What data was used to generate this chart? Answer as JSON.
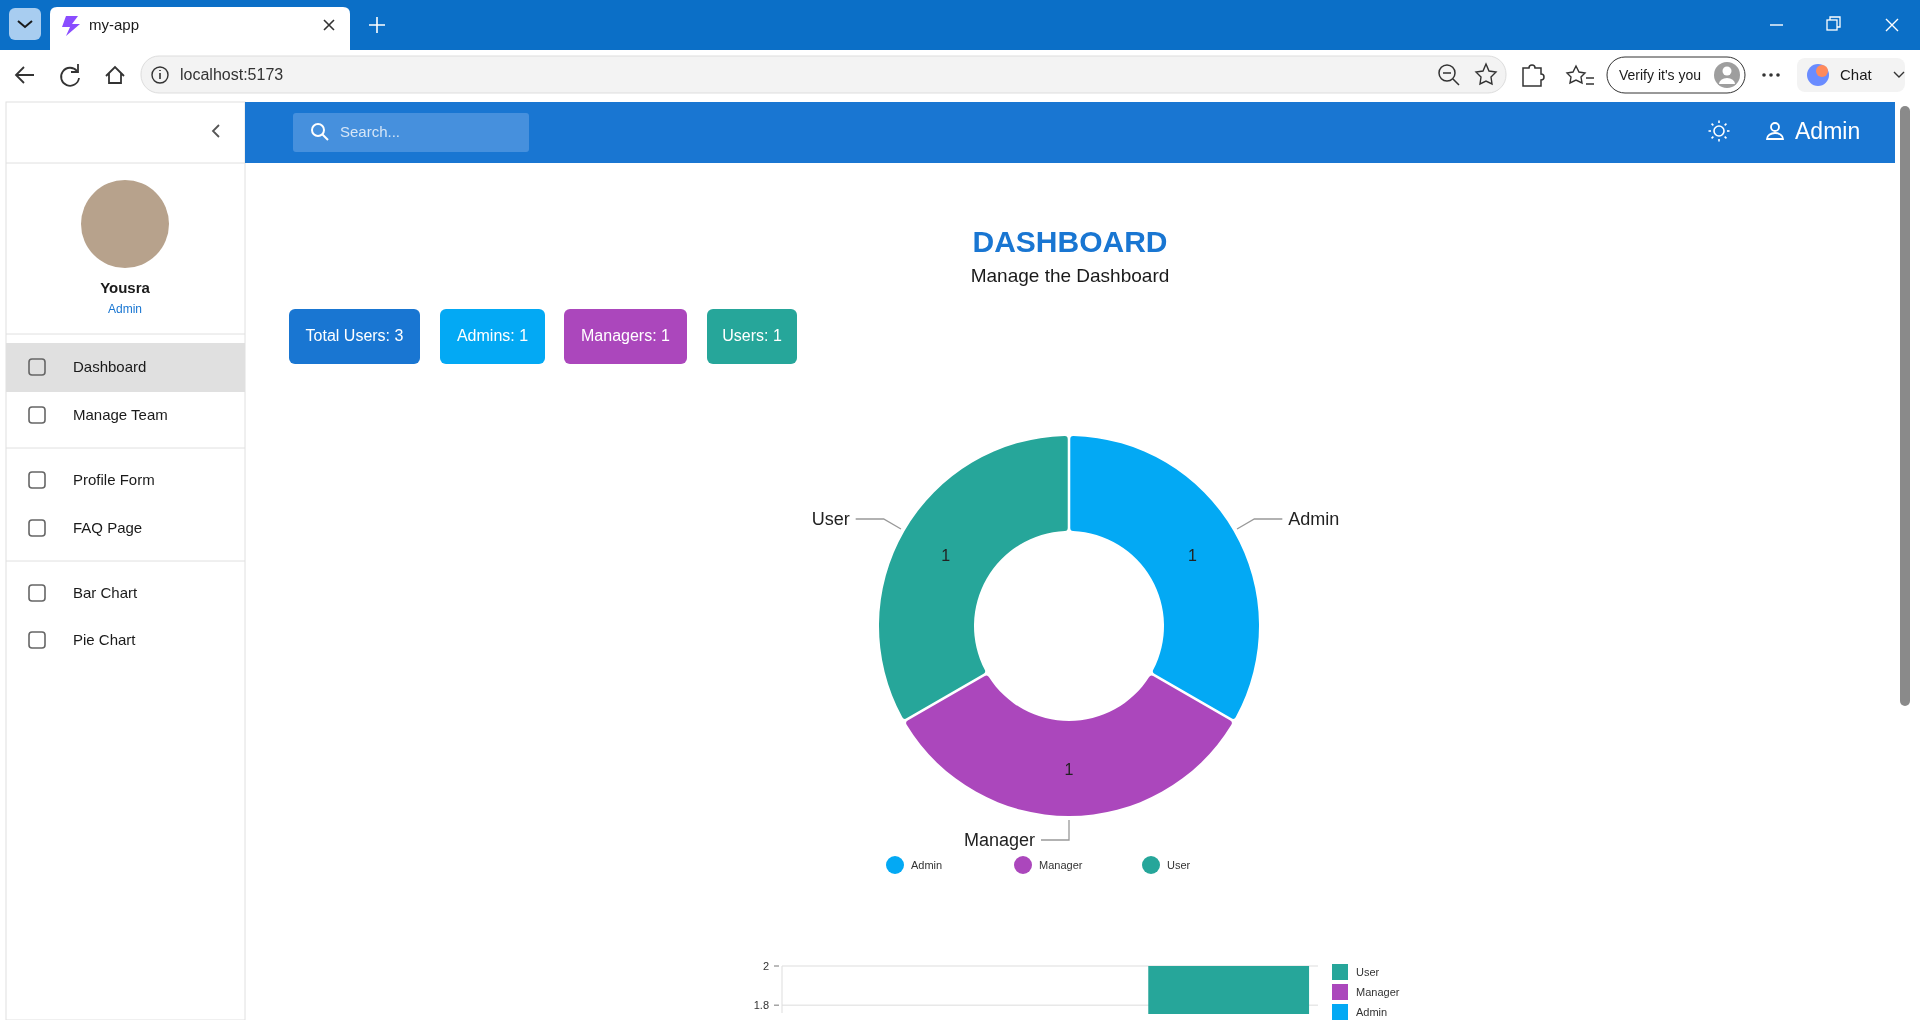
{
  "chart_data": [
    {
      "type": "other",
      "annotations": [
        "my-app",
        "localhost:5173",
        "Verify it's you",
        "Chat",
        "Search...",
        "Admin",
        "Yousra",
        "Admin",
        "Dashboard",
        "Manage Team",
        "Profile Form",
        "FAQ Page",
        "Bar Chart",
        "Pie Chart"
      ]
    },
    {
      "type": "donut",
      "title": "DASHBOARD",
      "subtitle": "Manage the Dashboard",
      "annotations": [
        "Total Users: 3",
        "Admins: 1",
        "Managers: 1",
        "Users: 1"
      ],
      "categories": [
        "Admin",
        "Manager",
        "User"
      ],
      "values": [
        1,
        1,
        1
      ],
      "colors": [
        "#03a9f4",
        "#ab47bc",
        "#26a69a"
      ],
      "data_labels": true,
      "legend": "bottom"
    },
    {
      "type": "bar",
      "categories": [
        null,
        null,
        null
      ],
      "series": [
        {
          "name": "User",
          "color": "#26a69a",
          "values": [
            null,
            null,
            2
          ]
        },
        {
          "name": "Manager",
          "color": "#ab47bc",
          "values": [
            null,
            null,
            null
          ]
        },
        {
          "name": "Admin",
          "color": "#03a9f4",
          "values": [
            null,
            null,
            null
          ]
        }
      ],
      "ylim": [
        1.76,
        2
      ],
      "yticks": [
        1.8,
        2
      ],
      "grid": "y",
      "legend": "right"
    }
  ]
}
